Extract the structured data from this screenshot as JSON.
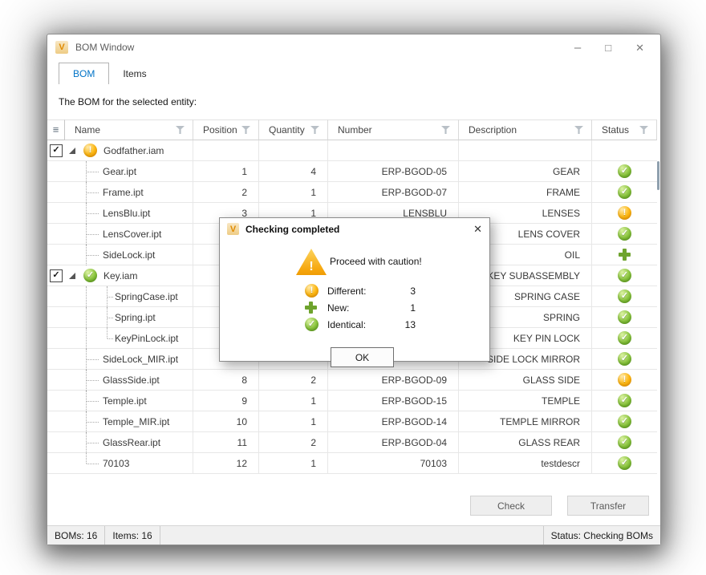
{
  "window": {
    "title": "BOM Window",
    "app_icon_letter": "V",
    "controls": {
      "minimize": "–",
      "maximize": "□",
      "close": "✕"
    }
  },
  "tabs": [
    {
      "label": "BOM",
      "selected": true
    },
    {
      "label": "Items",
      "selected": false
    }
  ],
  "bom_label": "The BOM for the selected entity:",
  "table": {
    "columns": [
      {
        "label": "Name"
      },
      {
        "label": "Position"
      },
      {
        "label": "Quantity"
      },
      {
        "label": "Number"
      },
      {
        "label": "Description"
      },
      {
        "label": "Status"
      }
    ],
    "rows": [
      {
        "name": "Godfather.iam",
        "level": 0,
        "checked": true,
        "expanded": true,
        "icon": "warning",
        "position": "",
        "quantity": "",
        "number": "",
        "description": "",
        "status": ""
      },
      {
        "name": "Gear.ipt",
        "level": 1,
        "position": "1",
        "quantity": "4",
        "number": "ERP-BGOD-05",
        "description": "GEAR",
        "status": "ok"
      },
      {
        "name": "Frame.ipt",
        "level": 1,
        "position": "2",
        "quantity": "1",
        "number": "ERP-BGOD-07",
        "description": "FRAME",
        "status": "ok"
      },
      {
        "name": "LensBlu.ipt",
        "level": 1,
        "position": "3",
        "quantity": "1",
        "number": "LENSBLU",
        "description": "LENSES",
        "status": "warning"
      },
      {
        "name": "LensCover.ipt",
        "level": 1,
        "position": "",
        "quantity": "",
        "number": "",
        "description": "LENS COVER",
        "status": "ok"
      },
      {
        "name": "SideLock.ipt",
        "level": 1,
        "position": "",
        "quantity": "",
        "number": "",
        "description": "OIL",
        "status": "new"
      },
      {
        "name": "Key.iam",
        "level": 0,
        "checked": true,
        "expanded": true,
        "icon": "ok",
        "position": "",
        "quantity": "",
        "number": "",
        "description": "KEY SUBASSEMBLY",
        "status": "ok"
      },
      {
        "name": "SpringCase.ipt",
        "level": 2,
        "position": "",
        "quantity": "",
        "number": "",
        "description": "SPRING CASE",
        "status": "ok"
      },
      {
        "name": "Spring.ipt",
        "level": 2,
        "position": "",
        "quantity": "",
        "number": "",
        "description": "SPRING",
        "status": "ok"
      },
      {
        "name": "KeyPinLock.ipt",
        "level": 2,
        "last": true,
        "position": "",
        "quantity": "",
        "number": "",
        "description": "KEY PIN LOCK",
        "status": "ok"
      },
      {
        "name": "SideLock_MIR.ipt",
        "level": 1,
        "position": "",
        "quantity": "",
        "number": "",
        "description": "SIDE LOCK MIRROR",
        "status": "ok"
      },
      {
        "name": "GlassSide.ipt",
        "level": 1,
        "position": "8",
        "quantity": "2",
        "number": "ERP-BGOD-09",
        "description": "GLASS SIDE",
        "status": "warning"
      },
      {
        "name": "Temple.ipt",
        "level": 1,
        "position": "9",
        "quantity": "1",
        "number": "ERP-BGOD-15",
        "description": "TEMPLE",
        "status": "ok"
      },
      {
        "name": "Temple_MIR.ipt",
        "level": 1,
        "position": "10",
        "quantity": "1",
        "number": "ERP-BGOD-14",
        "description": "TEMPLE MIRROR",
        "status": "ok"
      },
      {
        "name": "GlassRear.ipt",
        "level": 1,
        "position": "11",
        "quantity": "2",
        "number": "ERP-BGOD-04",
        "description": "GLASS REAR",
        "status": "ok"
      },
      {
        "name": "70103",
        "level": 1,
        "last": true,
        "position": "12",
        "quantity": "1",
        "number": "70103",
        "description": "testdescr",
        "status": "ok"
      }
    ]
  },
  "footer_buttons": [
    {
      "label": "Check"
    },
    {
      "label": "Transfer"
    }
  ],
  "status_bar": {
    "boms": "BOMs: 16",
    "items": "Items: 16",
    "status": "Status: Checking BOMs"
  },
  "dialog": {
    "title": "Checking completed",
    "close": "✕",
    "message": "Proceed with caution!",
    "stats": [
      {
        "icon": "different",
        "label": "Different:",
        "value": "3"
      },
      {
        "icon": "new",
        "label": "New:",
        "value": "1"
      },
      {
        "icon": "identical",
        "label": "Identical:",
        "value": "13"
      }
    ],
    "ok_label": "OK"
  },
  "colors": {
    "accent_blue": "#0173C7",
    "ok_green": "#7CB82F",
    "warning_orange": "#F6A800",
    "new_green": "#6EA32D"
  }
}
